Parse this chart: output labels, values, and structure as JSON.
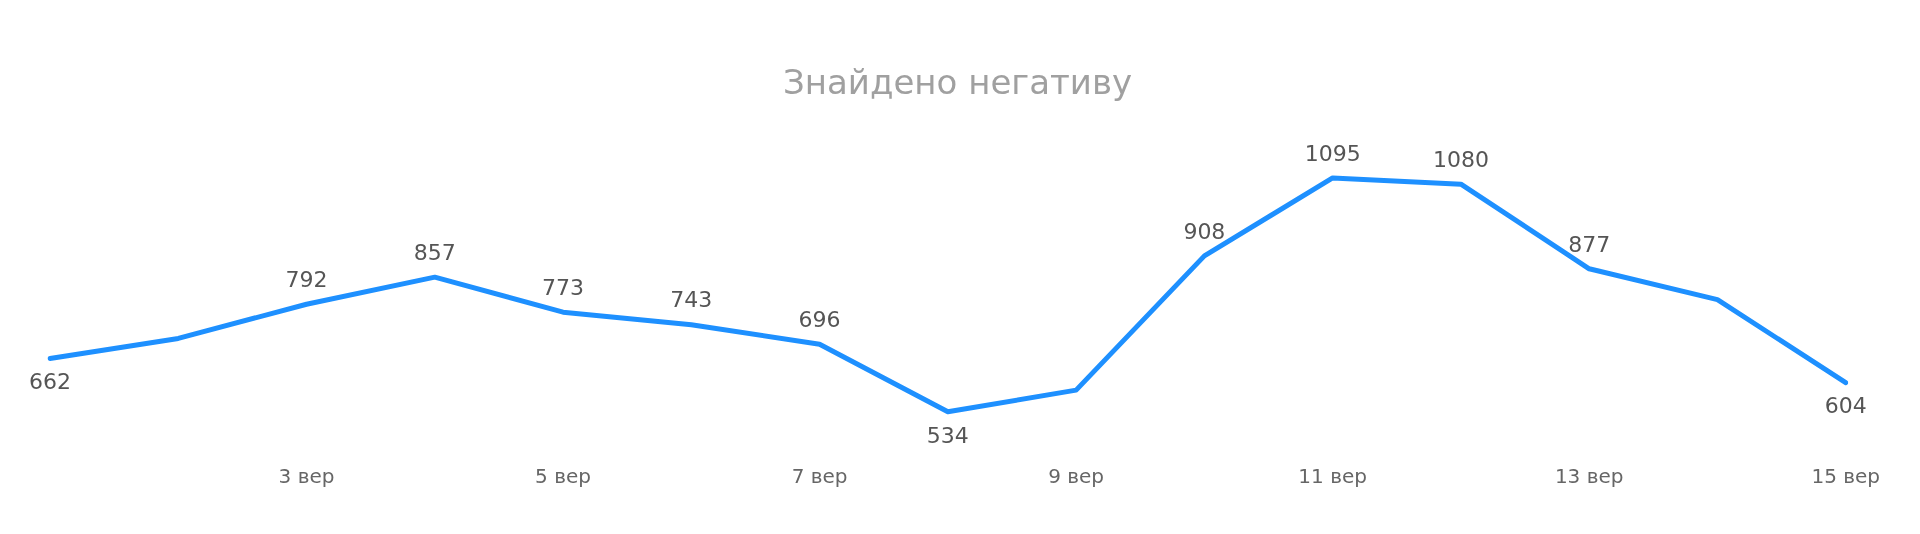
{
  "chart_data": {
    "type": "line",
    "title": "Знайдено негативу",
    "categories": [
      null,
      null,
      "3 вер",
      null,
      "5 вер",
      null,
      "7 вер",
      null,
      "9 вер",
      null,
      "11 вер",
      null,
      "13 вер",
      null,
      "15 вер"
    ],
    "series": [
      {
        "color": "#1e90ff",
        "values": [
          662,
          710,
          792,
          857,
          773,
          743,
          696,
          534,
          586,
          908,
          1095,
          1080,
          877,
          803,
          604
        ],
        "value_labels": [
          "662",
          null,
          "792",
          "857",
          "773",
          "743",
          "696",
          "534",
          null,
          "908",
          "1095",
          "1080",
          "877",
          null,
          "604"
        ]
      }
    ],
    "marker": "none",
    "grid": false,
    "legend": false
  }
}
